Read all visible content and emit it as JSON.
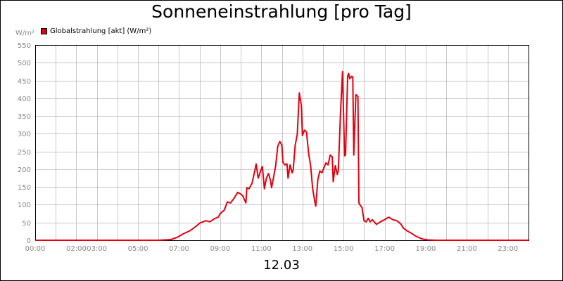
{
  "chart_data": {
    "type": "line",
    "title": "Sonneneinstrahlung [pro Tag]",
    "ylabel": "W/m²",
    "xlabel": "12.03",
    "ylim": [
      0,
      550
    ],
    "xlim": [
      0,
      24
    ],
    "yticks": [
      0,
      50,
      100,
      150,
      200,
      250,
      300,
      350,
      400,
      450,
      500,
      550
    ],
    "xticks": [
      {
        "h": 0,
        "label": "00:00"
      },
      {
        "h": 2,
        "label": "02:00"
      },
      {
        "h": 3,
        "label": "03:00"
      },
      {
        "h": 5,
        "label": "05:00"
      },
      {
        "h": 7,
        "label": "07:00"
      },
      {
        "h": 9,
        "label": "09:00"
      },
      {
        "h": 11,
        "label": "11:00"
      },
      {
        "h": 13,
        "label": "13:00"
      },
      {
        "h": 15,
        "label": "15:00"
      },
      {
        "h": 17,
        "label": "17:00"
      },
      {
        "h": 19,
        "label": "19:00"
      },
      {
        "h": 21,
        "label": "21:00"
      },
      {
        "h": 23,
        "label": "23:00"
      }
    ],
    "grid": true,
    "legend_position": "top-left",
    "series": [
      {
        "name": "Globalstrahlung [akt] (W/m²)",
        "color": "#e3000f",
        "points": [
          [
            0,
            0
          ],
          [
            6,
            0
          ],
          [
            6.6,
            2
          ],
          [
            6.9,
            8
          ],
          [
            7.2,
            18
          ],
          [
            7.5,
            26
          ],
          [
            7.8,
            38
          ],
          [
            8.0,
            48
          ],
          [
            8.3,
            55
          ],
          [
            8.5,
            52
          ],
          [
            8.7,
            60
          ],
          [
            8.9,
            65
          ],
          [
            9.0,
            75
          ],
          [
            9.2,
            85
          ],
          [
            9.35,
            108
          ],
          [
            9.5,
            105
          ],
          [
            9.7,
            120
          ],
          [
            9.85,
            135
          ],
          [
            10.0,
            130
          ],
          [
            10.1,
            125
          ],
          [
            10.25,
            105
          ],
          [
            10.3,
            148
          ],
          [
            10.4,
            145
          ],
          [
            10.55,
            160
          ],
          [
            10.7,
            200
          ],
          [
            10.75,
            215
          ],
          [
            10.85,
            175
          ],
          [
            10.95,
            192
          ],
          [
            11.05,
            208
          ],
          [
            11.15,
            145
          ],
          [
            11.25,
            175
          ],
          [
            11.35,
            188
          ],
          [
            11.45,
            168
          ],
          [
            11.5,
            148
          ],
          [
            11.6,
            178
          ],
          [
            11.7,
            210
          ],
          [
            11.8,
            265
          ],
          [
            11.9,
            278
          ],
          [
            12.0,
            268
          ],
          [
            12.05,
            220
          ],
          [
            12.15,
            212
          ],
          [
            12.25,
            215
          ],
          [
            12.3,
            175
          ],
          [
            12.4,
            212
          ],
          [
            12.5,
            190
          ],
          [
            12.55,
            198
          ],
          [
            12.65,
            268
          ],
          [
            12.75,
            298
          ],
          [
            12.85,
            415
          ],
          [
            12.95,
            380
          ],
          [
            13.0,
            295
          ],
          [
            13.1,
            310
          ],
          [
            13.2,
            305
          ],
          [
            13.3,
            245
          ],
          [
            13.4,
            210
          ],
          [
            13.5,
            145
          ],
          [
            13.6,
            110
          ],
          [
            13.65,
            96
          ],
          [
            13.75,
            170
          ],
          [
            13.85,
            195
          ],
          [
            13.95,
            190
          ],
          [
            14.05,
            205
          ],
          [
            14.15,
            218
          ],
          [
            14.25,
            212
          ],
          [
            14.35,
            240
          ],
          [
            14.45,
            235
          ],
          [
            14.5,
            165
          ],
          [
            14.6,
            210
          ],
          [
            14.7,
            185
          ],
          [
            14.75,
            198
          ],
          [
            14.85,
            352
          ],
          [
            14.95,
            475
          ],
          [
            15.05,
            238
          ],
          [
            15.1,
            240
          ],
          [
            15.2,
            462
          ],
          [
            15.25,
            470
          ],
          [
            15.3,
            455
          ],
          [
            15.35,
            458
          ],
          [
            15.4,
            462
          ],
          [
            15.45,
            460
          ],
          [
            15.5,
            240
          ],
          [
            15.6,
            410
          ],
          [
            15.7,
            405
          ],
          [
            15.75,
            105
          ],
          [
            15.8,
            100
          ],
          [
            15.9,
            92
          ],
          [
            16.0,
            55
          ],
          [
            16.1,
            52
          ],
          [
            16.2,
            62
          ],
          [
            16.3,
            52
          ],
          [
            16.4,
            58
          ],
          [
            16.6,
            45
          ],
          [
            16.8,
            52
          ],
          [
            17.0,
            58
          ],
          [
            17.2,
            65
          ],
          [
            17.4,
            58
          ],
          [
            17.6,
            55
          ],
          [
            17.8,
            45
          ],
          [
            17.9,
            35
          ],
          [
            18.1,
            26
          ],
          [
            18.3,
            20
          ],
          [
            18.5,
            12
          ],
          [
            18.8,
            4
          ],
          [
            19.1,
            1
          ],
          [
            19.5,
            0
          ],
          [
            24,
            0
          ]
        ]
      }
    ]
  }
}
